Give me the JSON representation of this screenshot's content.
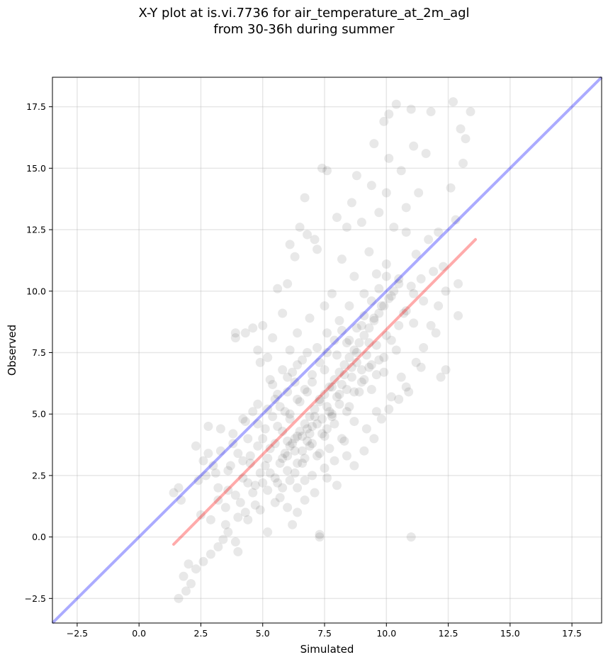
{
  "chart_data": {
    "type": "scatter",
    "title_line1": "X-Y plot at is.vi.7736 for air_temperature_at_2m_agl",
    "title_line2": "from 30-36h during summer",
    "xlabel": "Simulated",
    "ylabel": "Observed",
    "xlim": [
      -3.5,
      18.7
    ],
    "ylim": [
      -3.5,
      18.7
    ],
    "x_ticks": [
      -2.5,
      0.0,
      2.5,
      5.0,
      7.5,
      10.0,
      12.5,
      15.0,
      17.5
    ],
    "y_ticks": [
      -2.5,
      0.0,
      2.5,
      5.0,
      7.5,
      10.0,
      12.5,
      15.0,
      17.5
    ],
    "x_tick_labels": [
      "−2.5",
      "0.0",
      "2.5",
      "5.0",
      "7.5",
      "10.0",
      "12.5",
      "15.0",
      "17.5"
    ],
    "y_tick_labels": [
      "−2.5",
      "0.0",
      "2.5",
      "5.0",
      "7.5",
      "10.0",
      "12.5",
      "15.0",
      "17.5"
    ],
    "grid": true,
    "point_color": "#000000",
    "point_alpha": 0.09,
    "identity_line": {
      "color": "#0000ff",
      "alpha": 0.33,
      "from": [
        -3.5,
        -3.5
      ],
      "to": [
        18.7,
        18.7
      ]
    },
    "fit_line": {
      "color": "#ff0000",
      "alpha": 0.33,
      "from": [
        1.4,
        -0.3
      ],
      "to": [
        13.6,
        12.1
      ]
    },
    "points": [
      [
        1.6,
        -2.5
      ],
      [
        1.9,
        -2.2
      ],
      [
        1.8,
        -1.6
      ],
      [
        2.1,
        -1.9
      ],
      [
        2.0,
        -1.1
      ],
      [
        2.3,
        -1.3
      ],
      [
        2.6,
        -1.0
      ],
      [
        2.9,
        -0.7
      ],
      [
        3.2,
        -0.4
      ],
      [
        3.4,
        -0.1
      ],
      [
        1.4,
        1.8
      ],
      [
        1.7,
        1.5
      ],
      [
        1.6,
        2.0
      ],
      [
        2.4,
        2.3
      ],
      [
        2.3,
        3.7
      ],
      [
        2.6,
        3.1
      ],
      [
        2.8,
        4.5
      ],
      [
        2.9,
        0.7
      ],
      [
        3.1,
        2.6
      ],
      [
        3.3,
        3.5
      ],
      [
        3.5,
        0.5
      ],
      [
        3.6,
        1.9
      ],
      [
        3.7,
        2.9
      ],
      [
        3.8,
        4.2
      ],
      [
        3.9,
        -0.2
      ],
      [
        4.0,
        0.8
      ],
      [
        4.1,
        1.4
      ],
      [
        4.2,
        3.1
      ],
      [
        4.3,
        4.7
      ],
      [
        4.4,
        2.2
      ],
      [
        3.9,
        8.3
      ],
      [
        3.9,
        8.1
      ],
      [
        4.3,
        8.3
      ],
      [
        4.6,
        8.5
      ],
      [
        4.8,
        7.6
      ],
      [
        5.0,
        8.6
      ],
      [
        5.2,
        7.3
      ],
      [
        5.4,
        8.1
      ],
      [
        5.6,
        10.1
      ],
      [
        5.8,
        9.1
      ],
      [
        6.0,
        10.3
      ],
      [
        6.1,
        11.9
      ],
      [
        6.3,
        11.4
      ],
      [
        6.5,
        12.6
      ],
      [
        6.7,
        13.8
      ],
      [
        6.8,
        12.3
      ],
      [
        7.1,
        12.1
      ],
      [
        7.2,
        11.7
      ],
      [
        7.4,
        15.0
      ],
      [
        7.6,
        14.9
      ],
      [
        4.5,
        3.3
      ],
      [
        4.7,
        2.1
      ],
      [
        4.8,
        5.4
      ],
      [
        4.9,
        1.1
      ],
      [
        5.0,
        4.0
      ],
      [
        5.1,
        2.9
      ],
      [
        5.2,
        0.2
      ],
      [
        5.3,
        3.6
      ],
      [
        5.4,
        6.2
      ],
      [
        5.5,
        2.4
      ],
      [
        5.6,
        4.5
      ],
      [
        5.7,
        1.6
      ],
      [
        5.8,
        3.2
      ],
      [
        5.9,
        5.1
      ],
      [
        6.0,
        2.7
      ],
      [
        6.0,
        3.9
      ],
      [
        6.1,
        4.8
      ],
      [
        6.2,
        0.5
      ],
      [
        6.2,
        6.7
      ],
      [
        6.3,
        3.5
      ],
      [
        6.4,
        2.0
      ],
      [
        6.4,
        4.1
      ],
      [
        6.5,
        5.5
      ],
      [
        6.6,
        3.0
      ],
      [
        6.6,
        7.2
      ],
      [
        6.7,
        1.5
      ],
      [
        6.8,
        4.4
      ],
      [
        6.8,
        5.9
      ],
      [
        6.9,
        3.7
      ],
      [
        7.0,
        2.5
      ],
      [
        7.0,
        6.3
      ],
      [
        7.1,
        4.9
      ],
      [
        7.2,
        3.3
      ],
      [
        7.2,
        7.7
      ],
      [
        7.3,
        5.6
      ],
      [
        7.3,
        0.1
      ],
      [
        7.4,
        4.2
      ],
      [
        7.5,
        6.8
      ],
      [
        7.5,
        2.8
      ],
      [
        7.6,
        8.3
      ],
      [
        7.7,
        5.1
      ],
      [
        7.7,
        3.6
      ],
      [
        7.8,
        9.9
      ],
      [
        7.8,
        6.1
      ],
      [
        7.9,
        4.6
      ],
      [
        8.0,
        7.4
      ],
      [
        8.0,
        2.1
      ],
      [
        8.1,
        5.8
      ],
      [
        8.1,
        8.8
      ],
      [
        8.2,
        4.0
      ],
      [
        8.2,
        11.3
      ],
      [
        8.3,
        6.6
      ],
      [
        8.4,
        7.9
      ],
      [
        8.4,
        3.3
      ],
      [
        8.5,
        5.3
      ],
      [
        8.5,
        9.4
      ],
      [
        8.6,
        13.6
      ],
      [
        8.6,
        6.9
      ],
      [
        8.7,
        4.7
      ],
      [
        8.7,
        10.6
      ],
      [
        8.8,
        7.5
      ],
      [
        8.8,
        14.7
      ],
      [
        8.9,
        5.9
      ],
      [
        9.0,
        8.6
      ],
      [
        9.0,
        12.8
      ],
      [
        9.1,
        6.4
      ],
      [
        9.1,
        9.9
      ],
      [
        9.2,
        4.4
      ],
      [
        9.3,
        7.9
      ],
      [
        9.3,
        11.6
      ],
      [
        9.4,
        14.3
      ],
      [
        9.4,
        6.0
      ],
      [
        9.5,
        8.9
      ],
      [
        9.6,
        10.7
      ],
      [
        9.6,
        5.1
      ],
      [
        9.7,
        7.2
      ],
      [
        9.7,
        13.2
      ],
      [
        9.8,
        9.4
      ],
      [
        9.9,
        16.9
      ],
      [
        9.9,
        6.7
      ],
      [
        10.0,
        11.1
      ],
      [
        10.0,
        8.2
      ],
      [
        10.1,
        15.4
      ],
      [
        10.1,
        17.2
      ],
      [
        10.2,
        5.7
      ],
      [
        10.2,
        9.8
      ],
      [
        10.3,
        12.6
      ],
      [
        10.4,
        17.6
      ],
      [
        10.4,
        7.6
      ],
      [
        10.5,
        10.5
      ],
      [
        10.6,
        14.9
      ],
      [
        10.6,
        6.5
      ],
      [
        10.7,
        9.1
      ],
      [
        10.8,
        12.4
      ],
      [
        10.8,
        13.4
      ],
      [
        10.9,
        5.9
      ],
      [
        11.0,
        10.2
      ],
      [
        11.0,
        17.4
      ],
      [
        11.1,
        15.9
      ],
      [
        11.1,
        8.7
      ],
      [
        11.2,
        11.5
      ],
      [
        11.3,
        14.0
      ],
      [
        11.4,
        6.9
      ],
      [
        11.5,
        9.6
      ],
      [
        11.6,
        15.6
      ],
      [
        11.7,
        12.1
      ],
      [
        11.8,
        17.3
      ],
      [
        11.9,
        10.8
      ],
      [
        12.0,
        8.3
      ],
      [
        12.1,
        12.4
      ],
      [
        12.2,
        6.5
      ],
      [
        12.3,
        11.0
      ],
      [
        12.4,
        6.8
      ],
      [
        12.6,
        14.2
      ],
      [
        12.7,
        17.7
      ],
      [
        12.8,
        12.9
      ],
      [
        12.9,
        10.3
      ],
      [
        13.0,
        16.6
      ],
      [
        13.1,
        15.2
      ],
      [
        13.2,
        16.2
      ],
      [
        13.4,
        17.3
      ],
      [
        12.9,
        9.0
      ],
      [
        11.0,
        0.0
      ],
      [
        7.3,
        0.0
      ],
      [
        10.0,
        14.0
      ],
      [
        9.5,
        16.0
      ],
      [
        8.0,
        13.0
      ],
      [
        8.4,
        12.6
      ],
      [
        7.5,
        9.4
      ],
      [
        6.9,
        8.9
      ],
      [
        5.5,
        5.6
      ],
      [
        5.8,
        6.8
      ],
      [
        6.1,
        7.6
      ],
      [
        6.4,
        8.3
      ],
      [
        5.3,
        6.4
      ],
      [
        4.9,
        7.1
      ],
      [
        4.6,
        5.1
      ],
      [
        4.2,
        4.8
      ],
      [
        3.8,
        3.8
      ],
      [
        3.3,
        4.4
      ],
      [
        2.8,
        3.4
      ],
      [
        3.0,
        2.9
      ],
      [
        3.2,
        1.5
      ],
      [
        2.7,
        2.5
      ],
      [
        2.5,
        0.9
      ],
      [
        3.6,
        0.2
      ],
      [
        4.0,
        -0.6
      ],
      [
        4.4,
        0.7
      ],
      [
        4.7,
        1.3
      ],
      [
        5.2,
        1.9
      ],
      [
        5.6,
        2.2
      ],
      [
        6.0,
        1.2
      ],
      [
        6.4,
        1.0
      ],
      [
        6.7,
        2.3
      ],
      [
        7.1,
        1.8
      ],
      [
        7.6,
        2.4
      ],
      [
        7.9,
        3.1
      ],
      [
        8.3,
        3.9
      ],
      [
        8.7,
        2.9
      ],
      [
        9.1,
        3.5
      ],
      [
        9.5,
        4.0
      ],
      [
        9.8,
        4.8
      ],
      [
        10.1,
        5.2
      ],
      [
        10.5,
        5.6
      ],
      [
        10.8,
        6.1
      ],
      [
        11.2,
        7.1
      ],
      [
        11.5,
        7.7
      ],
      [
        11.8,
        8.6
      ],
      [
        12.1,
        9.4
      ],
      [
        12.4,
        10.0
      ],
      [
        5.9,
        3.4
      ],
      [
        6.1,
        3.7
      ],
      [
        6.3,
        4.0
      ],
      [
        6.5,
        4.3
      ],
      [
        6.7,
        4.6
      ],
      [
        6.9,
        4.9
      ],
      [
        7.1,
        5.2
      ],
      [
        7.3,
        5.5
      ],
      [
        7.5,
        5.8
      ],
      [
        7.7,
        6.1
      ],
      [
        7.9,
        6.4
      ],
      [
        8.1,
        6.7
      ],
      [
        8.3,
        7.0
      ],
      [
        8.5,
        7.3
      ],
      [
        8.7,
        7.6
      ],
      [
        8.9,
        7.9
      ],
      [
        9.1,
        8.2
      ],
      [
        9.3,
        8.5
      ],
      [
        9.5,
        8.8
      ],
      [
        9.7,
        9.1
      ],
      [
        9.9,
        9.4
      ],
      [
        10.1,
        9.7
      ],
      [
        10.3,
        10.0
      ],
      [
        10.5,
        10.3
      ],
      [
        6.2,
        3.8
      ],
      [
        6.6,
        4.1
      ],
      [
        6.8,
        3.9
      ],
      [
        7.0,
        4.5
      ],
      [
        7.4,
        4.8
      ],
      [
        7.6,
        5.3
      ],
      [
        7.8,
        5.0
      ],
      [
        8.0,
        5.7
      ],
      [
        8.2,
        6.2
      ],
      [
        8.4,
        6.0
      ],
      [
        8.6,
        6.5
      ],
      [
        8.8,
        7.1
      ],
      [
        9.0,
        6.8
      ],
      [
        9.2,
        7.4
      ],
      [
        9.4,
        7.0
      ],
      [
        9.6,
        7.8
      ],
      [
        5.7,
        3.0
      ],
      [
        6.0,
        3.3
      ],
      [
        6.3,
        2.6
      ],
      [
        6.6,
        3.5
      ],
      [
        6.9,
        4.2
      ],
      [
        7.2,
        4.6
      ],
      [
        7.5,
        4.1
      ],
      [
        7.8,
        4.9
      ],
      [
        8.1,
        5.4
      ],
      [
        8.4,
        5.1
      ],
      [
        8.7,
        5.9
      ],
      [
        9.0,
        6.3
      ],
      [
        9.3,
        6.9
      ],
      [
        9.6,
        6.6
      ],
      [
        9.9,
        7.3
      ],
      [
        10.2,
        8.0
      ],
      [
        10.5,
        8.6
      ],
      [
        10.8,
        9.2
      ],
      [
        11.1,
        9.9
      ],
      [
        11.4,
        10.5
      ],
      [
        5.0,
        2.2
      ],
      [
        5.3,
        2.6
      ],
      [
        5.5,
        1.4
      ],
      [
        5.8,
        2.0
      ],
      [
        6.1,
        2.3
      ],
      [
        6.4,
        3.0
      ],
      [
        6.7,
        3.2
      ],
      [
        7.0,
        3.8
      ],
      [
        7.3,
        3.4
      ],
      [
        7.6,
        4.4
      ],
      [
        4.3,
        1.0
      ],
      [
        4.6,
        1.8
      ],
      [
        4.9,
        2.6
      ],
      [
        5.2,
        3.2
      ],
      [
        5.5,
        3.8
      ],
      [
        5.8,
        4.3
      ],
      [
        6.1,
        5.0
      ],
      [
        6.4,
        5.6
      ],
      [
        6.7,
        6.0
      ],
      [
        7.0,
        6.6
      ],
      [
        7.3,
        7.1
      ],
      [
        7.6,
        7.5
      ],
      [
        7.9,
        8.0
      ],
      [
        8.2,
        8.4
      ],
      [
        8.5,
        8.0
      ],
      [
        8.8,
        8.5
      ],
      [
        9.1,
        9.0
      ],
      [
        9.4,
        9.6
      ],
      [
        9.7,
        10.1
      ],
      [
        10.0,
        10.6
      ],
      [
        3.5,
        1.2
      ],
      [
        3.9,
        1.7
      ],
      [
        4.2,
        2.4
      ],
      [
        4.5,
        3.0
      ],
      [
        4.8,
        3.7
      ],
      [
        5.1,
        4.4
      ],
      [
        5.4,
        4.9
      ],
      [
        5.7,
        5.3
      ],
      [
        6.0,
        5.9
      ],
      [
        6.3,
        6.3
      ],
      [
        3.2,
        2.0
      ],
      [
        3.6,
        2.7
      ],
      [
        4.0,
        3.4
      ],
      [
        4.4,
        4.0
      ],
      [
        4.8,
        4.6
      ],
      [
        5.2,
        5.2
      ],
      [
        5.6,
        5.8
      ],
      [
        6.0,
        6.5
      ],
      [
        6.4,
        7.0
      ],
      [
        6.8,
        7.5
      ]
    ]
  }
}
